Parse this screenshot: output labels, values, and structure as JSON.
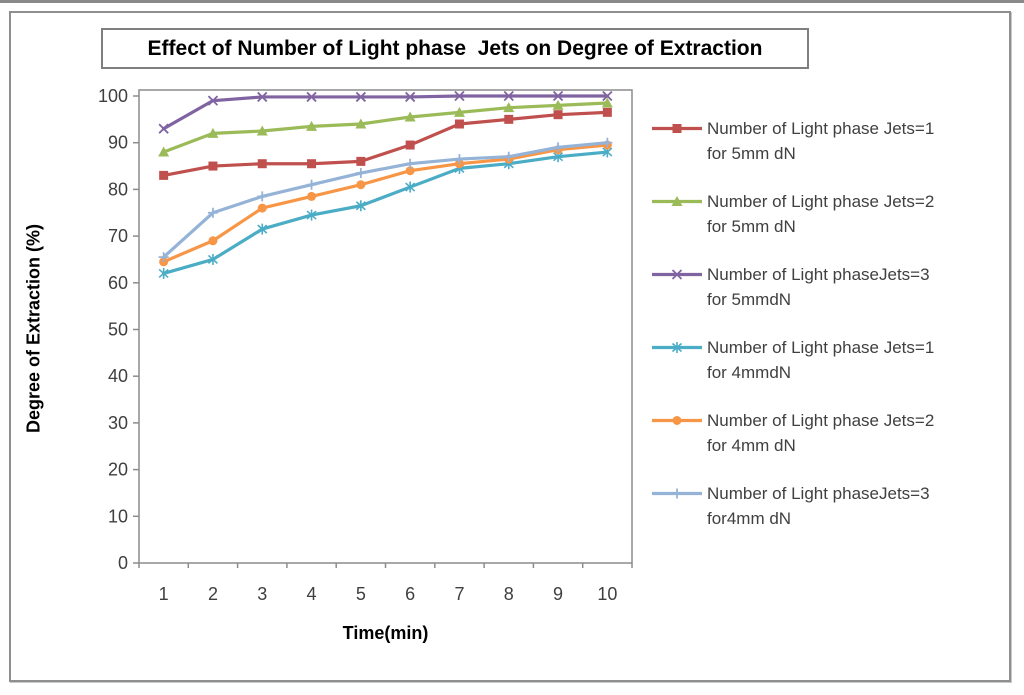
{
  "chart_data": {
    "type": "line",
    "title": "Effect of Number of Light phase  Jets on Degree of Extraction",
    "xlabel": "Time(min)",
    "ylabel": "Degree of Extraction (%)",
    "x": [
      1,
      2,
      3,
      4,
      5,
      6,
      7,
      8,
      9,
      10
    ],
    "ylim": [
      0,
      100
    ],
    "ytick_step": 10,
    "grid": false,
    "legend_position": "right",
    "series": [
      {
        "name": "Number of Light phase Jets=1 for 5mm dN",
        "label_lines": [
          "Number of Light phase Jets=1",
          "for 5mm dN"
        ],
        "color": "#C0504D",
        "marker": "square",
        "values": [
          83,
          85,
          85.5,
          85.5,
          86,
          89.5,
          94,
          95,
          96,
          96.5
        ]
      },
      {
        "name": "Number of Light phase Jets=2 for 5mm dN",
        "label_lines": [
          "Number of Light phase Jets=2",
          "for 5mm dN"
        ],
        "color": "#9BBB59",
        "marker": "triangle",
        "values": [
          88,
          92,
          92.5,
          93.5,
          94,
          95.5,
          96.5,
          97.5,
          98,
          98.5
        ]
      },
      {
        "name": "Number of Light phaseJets=3 for 5mmdN",
        "label_lines": [
          "Number of Light phaseJets=3",
          "for 5mmdN"
        ],
        "color": "#8064A2",
        "marker": "x",
        "values": [
          93,
          99,
          99.8,
          99.8,
          99.8,
          99.8,
          100,
          100,
          100,
          100
        ]
      },
      {
        "name": "Number of Light phase Jets=1 for 4mmdN",
        "label_lines": [
          "Number of Light phase Jets=1",
          "for 4mmdN"
        ],
        "color": "#4BACC6",
        "marker": "asterisk",
        "values": [
          62,
          65,
          71.5,
          74.5,
          76.5,
          80.5,
          84.5,
          85.5,
          87,
          88
        ]
      },
      {
        "name": "Number of Light phase Jets=2 for 4mm dN",
        "label_lines": [
          "Number of Light phase Jets=2",
          "for 4mm dN"
        ],
        "color": "#F79646",
        "marker": "circle",
        "values": [
          64.5,
          69,
          76,
          78.5,
          81,
          84,
          85.5,
          86.5,
          88.5,
          89.5
        ]
      },
      {
        "name": "Number of Light phaseJets=3 for4mm dN",
        "label_lines": [
          "Number of Light phaseJets=3",
          "for4mm dN"
        ],
        "color": "#95B3D7",
        "marker": "plus",
        "values": [
          65.5,
          75,
          78.5,
          81,
          83.5,
          85.5,
          86.5,
          87,
          89,
          90
        ]
      }
    ]
  },
  "colors": {
    "axis": "#8C8C8C",
    "tick_text": "#3F3F3F",
    "frame_border": "#8F8F8F",
    "title_border": "#7F7F7F",
    "title_text": "#000000"
  }
}
